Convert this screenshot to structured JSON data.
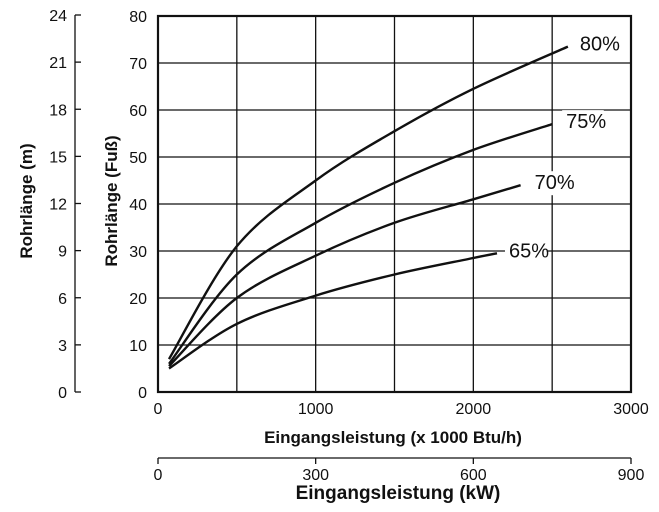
{
  "chart_data": {
    "type": "line",
    "x_axis": {
      "label": "Eingangsleistung (x 1000 Btu/h)",
      "range": [
        0,
        3000
      ],
      "ticks": [
        0,
        1000,
        2000,
        3000
      ],
      "tick_labels": [
        "0",
        "1000",
        "2000",
        "3000"
      ],
      "grid_step": 500
    },
    "x_axis_secondary": {
      "label": "Eingangsleistung (kW)",
      "range": [
        0,
        900
      ],
      "ticks": [
        0,
        300,
        600,
        900
      ],
      "tick_labels": [
        "0",
        "300",
        "600",
        "900"
      ]
    },
    "y_axis": {
      "label": "Rohrlänge (Fuß)",
      "range": [
        0,
        80
      ],
      "ticks": [
        0,
        10,
        20,
        30,
        40,
        50,
        60,
        70,
        80
      ],
      "tick_labels": [
        "0",
        "10",
        "20",
        "30",
        "40",
        "50",
        "60",
        "70",
        "80"
      ]
    },
    "y_axis_secondary": {
      "label": "Rohrlänge (m)",
      "range": [
        0,
        24
      ],
      "ticks": [
        0,
        3,
        6,
        9,
        12,
        15,
        18,
        21,
        24
      ],
      "tick_labels": [
        "0",
        "3",
        "6",
        "9",
        "12",
        "15",
        "18",
        "21",
        "24"
      ]
    },
    "grid": true,
    "series": [
      {
        "name": "80%",
        "points": [
          [
            70,
            7
          ],
          [
            500,
            31
          ],
          [
            1000,
            45
          ],
          [
            1500,
            55.5
          ],
          [
            2000,
            64.5
          ],
          [
            2600,
            73.5
          ]
        ]
      },
      {
        "name": "75%",
        "points": [
          [
            70,
            6
          ],
          [
            500,
            25
          ],
          [
            1000,
            36
          ],
          [
            1500,
            44.5
          ],
          [
            2000,
            51.5
          ],
          [
            2500,
            57
          ]
        ]
      },
      {
        "name": "70%",
        "points": [
          [
            70,
            5.5
          ],
          [
            500,
            20
          ],
          [
            1000,
            29
          ],
          [
            1500,
            36
          ],
          [
            2000,
            41
          ],
          [
            2300,
            44
          ]
        ]
      },
      {
        "name": "65%",
        "points": [
          [
            70,
            5
          ],
          [
            500,
            14.5
          ],
          [
            1000,
            20.5
          ],
          [
            1500,
            25
          ],
          [
            2000,
            28.5
          ],
          [
            2150,
            29.5
          ]
        ]
      }
    ]
  }
}
